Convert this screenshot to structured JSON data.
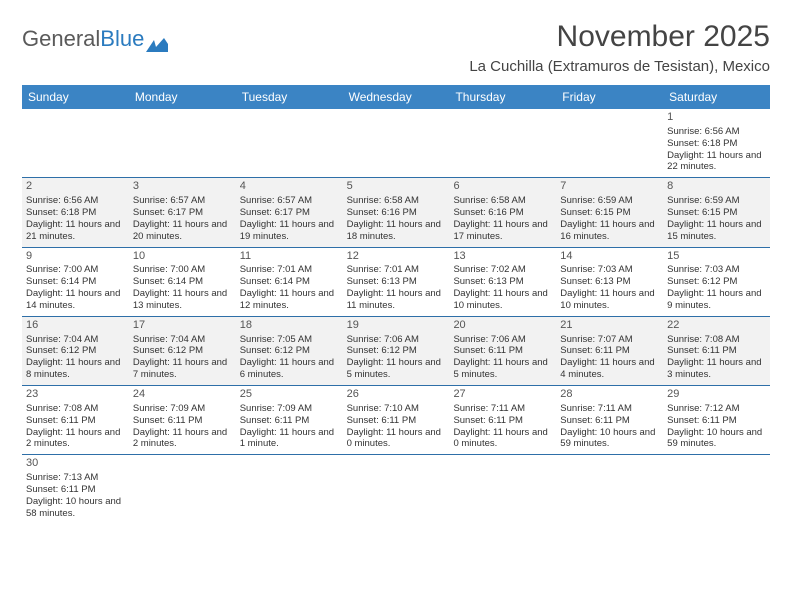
{
  "logo": {
    "part1": "General",
    "part2": "Blue"
  },
  "title": {
    "month": "November 2025",
    "location": "La Cuchilla (Extramuros de Tesistan), Mexico"
  },
  "header_bg": "#3b84c4",
  "weekdays": [
    "Sunday",
    "Monday",
    "Tuesday",
    "Wednesday",
    "Thursday",
    "Friday",
    "Saturday"
  ],
  "weeks": [
    [
      {
        "n": "",
        "sr": "",
        "ss": "",
        "dl": ""
      },
      {
        "n": "",
        "sr": "",
        "ss": "",
        "dl": ""
      },
      {
        "n": "",
        "sr": "",
        "ss": "",
        "dl": ""
      },
      {
        "n": "",
        "sr": "",
        "ss": "",
        "dl": ""
      },
      {
        "n": "",
        "sr": "",
        "ss": "",
        "dl": ""
      },
      {
        "n": "",
        "sr": "",
        "ss": "",
        "dl": ""
      },
      {
        "n": "1",
        "sr": "Sunrise: 6:56 AM",
        "ss": "Sunset: 6:18 PM",
        "dl": "Daylight: 11 hours and 22 minutes."
      }
    ],
    [
      {
        "n": "2",
        "sr": "Sunrise: 6:56 AM",
        "ss": "Sunset: 6:18 PM",
        "dl": "Daylight: 11 hours and 21 minutes."
      },
      {
        "n": "3",
        "sr": "Sunrise: 6:57 AM",
        "ss": "Sunset: 6:17 PM",
        "dl": "Daylight: 11 hours and 20 minutes."
      },
      {
        "n": "4",
        "sr": "Sunrise: 6:57 AM",
        "ss": "Sunset: 6:17 PM",
        "dl": "Daylight: 11 hours and 19 minutes."
      },
      {
        "n": "5",
        "sr": "Sunrise: 6:58 AM",
        "ss": "Sunset: 6:16 PM",
        "dl": "Daylight: 11 hours and 18 minutes."
      },
      {
        "n": "6",
        "sr": "Sunrise: 6:58 AM",
        "ss": "Sunset: 6:16 PM",
        "dl": "Daylight: 11 hours and 17 minutes."
      },
      {
        "n": "7",
        "sr": "Sunrise: 6:59 AM",
        "ss": "Sunset: 6:15 PM",
        "dl": "Daylight: 11 hours and 16 minutes."
      },
      {
        "n": "8",
        "sr": "Sunrise: 6:59 AM",
        "ss": "Sunset: 6:15 PM",
        "dl": "Daylight: 11 hours and 15 minutes."
      }
    ],
    [
      {
        "n": "9",
        "sr": "Sunrise: 7:00 AM",
        "ss": "Sunset: 6:14 PM",
        "dl": "Daylight: 11 hours and 14 minutes."
      },
      {
        "n": "10",
        "sr": "Sunrise: 7:00 AM",
        "ss": "Sunset: 6:14 PM",
        "dl": "Daylight: 11 hours and 13 minutes."
      },
      {
        "n": "11",
        "sr": "Sunrise: 7:01 AM",
        "ss": "Sunset: 6:14 PM",
        "dl": "Daylight: 11 hours and 12 minutes."
      },
      {
        "n": "12",
        "sr": "Sunrise: 7:01 AM",
        "ss": "Sunset: 6:13 PM",
        "dl": "Daylight: 11 hours and 11 minutes."
      },
      {
        "n": "13",
        "sr": "Sunrise: 7:02 AM",
        "ss": "Sunset: 6:13 PM",
        "dl": "Daylight: 11 hours and 10 minutes."
      },
      {
        "n": "14",
        "sr": "Sunrise: 7:03 AM",
        "ss": "Sunset: 6:13 PM",
        "dl": "Daylight: 11 hours and 10 minutes."
      },
      {
        "n": "15",
        "sr": "Sunrise: 7:03 AM",
        "ss": "Sunset: 6:12 PM",
        "dl": "Daylight: 11 hours and 9 minutes."
      }
    ],
    [
      {
        "n": "16",
        "sr": "Sunrise: 7:04 AM",
        "ss": "Sunset: 6:12 PM",
        "dl": "Daylight: 11 hours and 8 minutes."
      },
      {
        "n": "17",
        "sr": "Sunrise: 7:04 AM",
        "ss": "Sunset: 6:12 PM",
        "dl": "Daylight: 11 hours and 7 minutes."
      },
      {
        "n": "18",
        "sr": "Sunrise: 7:05 AM",
        "ss": "Sunset: 6:12 PM",
        "dl": "Daylight: 11 hours and 6 minutes."
      },
      {
        "n": "19",
        "sr": "Sunrise: 7:06 AM",
        "ss": "Sunset: 6:12 PM",
        "dl": "Daylight: 11 hours and 5 minutes."
      },
      {
        "n": "20",
        "sr": "Sunrise: 7:06 AM",
        "ss": "Sunset: 6:11 PM",
        "dl": "Daylight: 11 hours and 5 minutes."
      },
      {
        "n": "21",
        "sr": "Sunrise: 7:07 AM",
        "ss": "Sunset: 6:11 PM",
        "dl": "Daylight: 11 hours and 4 minutes."
      },
      {
        "n": "22",
        "sr": "Sunrise: 7:08 AM",
        "ss": "Sunset: 6:11 PM",
        "dl": "Daylight: 11 hours and 3 minutes."
      }
    ],
    [
      {
        "n": "23",
        "sr": "Sunrise: 7:08 AM",
        "ss": "Sunset: 6:11 PM",
        "dl": "Daylight: 11 hours and 2 minutes."
      },
      {
        "n": "24",
        "sr": "Sunrise: 7:09 AM",
        "ss": "Sunset: 6:11 PM",
        "dl": "Daylight: 11 hours and 2 minutes."
      },
      {
        "n": "25",
        "sr": "Sunrise: 7:09 AM",
        "ss": "Sunset: 6:11 PM",
        "dl": "Daylight: 11 hours and 1 minute."
      },
      {
        "n": "26",
        "sr": "Sunrise: 7:10 AM",
        "ss": "Sunset: 6:11 PM",
        "dl": "Daylight: 11 hours and 0 minutes."
      },
      {
        "n": "27",
        "sr": "Sunrise: 7:11 AM",
        "ss": "Sunset: 6:11 PM",
        "dl": "Daylight: 11 hours and 0 minutes."
      },
      {
        "n": "28",
        "sr": "Sunrise: 7:11 AM",
        "ss": "Sunset: 6:11 PM",
        "dl": "Daylight: 10 hours and 59 minutes."
      },
      {
        "n": "29",
        "sr": "Sunrise: 7:12 AM",
        "ss": "Sunset: 6:11 PM",
        "dl": "Daylight: 10 hours and 59 minutes."
      }
    ],
    [
      {
        "n": "30",
        "sr": "Sunrise: 7:13 AM",
        "ss": "Sunset: 6:11 PM",
        "dl": "Daylight: 10 hours and 58 minutes."
      },
      {
        "n": "",
        "sr": "",
        "ss": "",
        "dl": ""
      },
      {
        "n": "",
        "sr": "",
        "ss": "",
        "dl": ""
      },
      {
        "n": "",
        "sr": "",
        "ss": "",
        "dl": ""
      },
      {
        "n": "",
        "sr": "",
        "ss": "",
        "dl": ""
      },
      {
        "n": "",
        "sr": "",
        "ss": "",
        "dl": ""
      },
      {
        "n": "",
        "sr": "",
        "ss": "",
        "dl": ""
      }
    ]
  ],
  "shaded_weeks": [
    1,
    3
  ],
  "style": {
    "header_bg": "#3b84c4",
    "line_color": "#2e6fa8",
    "shade_color": "#f2f2f2",
    "text_color": "#333333",
    "cell_fontsize": 9.5,
    "daynum_fontsize": 11,
    "month_fontsize": 30,
    "location_fontsize": 15
  }
}
